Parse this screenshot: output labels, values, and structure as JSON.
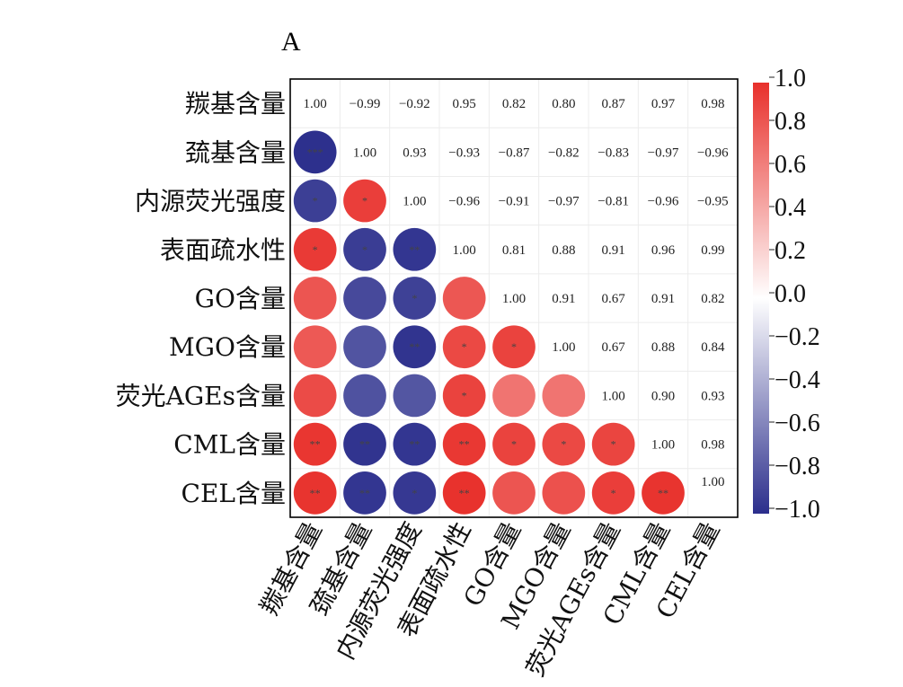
{
  "panel_label": "A",
  "chart_data": {
    "type": "heatmap",
    "title": "",
    "variables": [
      "羰基含量",
      "巯基含量",
      "内源荧光强度",
      "表面疏水性",
      "GO含量",
      "MGO含量",
      "荧光AGEs含量",
      "CML含量",
      "CEL含量"
    ],
    "matrix": [
      [
        1.0,
        -0.99,
        -0.92,
        0.95,
        0.82,
        0.8,
        0.87,
        0.97,
        0.98
      ],
      [
        -0.99,
        1.0,
        0.93,
        -0.93,
        -0.87,
        -0.82,
        -0.83,
        -0.97,
        -0.96
      ],
      [
        -0.92,
        0.93,
        1.0,
        -0.96,
        -0.91,
        -0.97,
        -0.81,
        -0.96,
        -0.95
      ],
      [
        0.95,
        -0.93,
        -0.96,
        1.0,
        0.81,
        0.88,
        0.91,
        0.96,
        0.99
      ],
      [
        0.82,
        -0.87,
        -0.91,
        0.81,
        1.0,
        0.91,
        0.67,
        0.91,
        0.82
      ],
      [
        0.8,
        -0.82,
        -0.97,
        0.88,
        0.91,
        1.0,
        0.67,
        0.88,
        0.84
      ],
      [
        0.87,
        -0.83,
        -0.81,
        0.91,
        0.67,
        0.67,
        1.0,
        0.9,
        0.93
      ],
      [
        0.97,
        -0.97,
        -0.96,
        0.96,
        0.91,
        0.88,
        0.9,
        1.0,
        0.98
      ],
      [
        0.98,
        -0.96,
        -0.95,
        0.99,
        0.82,
        0.84,
        0.93,
        0.98,
        1.0
      ]
    ],
    "upper_text": [
      [
        "1.00",
        "−0.99",
        "−0.92",
        "0.95",
        "0.82",
        "0.80",
        "0.87",
        "0.97",
        "0.98"
      ],
      [
        null,
        "1.00",
        "0.93",
        "−0.93",
        "−0.87",
        "−0.82",
        "−0.83",
        "−0.97",
        "−0.96"
      ],
      [
        null,
        null,
        "1.00",
        "−0.96",
        "−0.91",
        "−0.97",
        "−0.81",
        "−0.96",
        "−0.95"
      ],
      [
        null,
        null,
        null,
        "1.00",
        "0.81",
        "0.88",
        "0.91",
        "0.96",
        "0.99"
      ],
      [
        null,
        null,
        null,
        null,
        "1.00",
        "0.91",
        "0.67",
        "0.91",
        "0.82"
      ],
      [
        null,
        null,
        null,
        null,
        null,
        "1.00",
        "0.67",
        "0.88",
        "0.84"
      ],
      [
        null,
        null,
        null,
        null,
        null,
        null,
        "1.00",
        "0.90",
        "0.93"
      ],
      [
        null,
        null,
        null,
        null,
        null,
        null,
        null,
        "1.00",
        "0.98"
      ],
      [
        null,
        null,
        null,
        null,
        null,
        null,
        null,
        null,
        "1.00"
      ]
    ],
    "significance": [
      [
        "",
        "",
        "",
        "",
        "",
        "",
        "",
        "",
        ""
      ],
      [
        "***",
        "",
        "",
        "",
        "",
        "",
        "",
        "",
        ""
      ],
      [
        "*",
        "*",
        "",
        "",
        "",
        "",
        "",
        "",
        ""
      ],
      [
        "*",
        "*",
        "**",
        "",
        "",
        "",
        "",
        "",
        ""
      ],
      [
        "",
        "",
        "*",
        "",
        "",
        "",
        "",
        "",
        ""
      ],
      [
        "",
        "",
        "**",
        "*",
        "*",
        "",
        "",
        "",
        ""
      ],
      [
        "",
        "",
        "",
        "*",
        "",
        "",
        "",
        "",
        ""
      ],
      [
        "**",
        "**",
        "**",
        "**",
        "*",
        "*",
        "*",
        "",
        ""
      ],
      [
        "**",
        "**",
        "*",
        "**",
        "",
        "",
        "*",
        "**",
        ""
      ]
    ],
    "colorbar": {
      "range": [
        -1.0,
        1.0
      ],
      "ticks": [
        "1.0",
        "0.8",
        "0.6",
        "0.4",
        "0.2",
        "0.0",
        "−0.2",
        "−0.4",
        "−0.6",
        "−0.8",
        "−1.0"
      ],
      "colors": {
        "positive": "#e8302b",
        "neutral": "#ffffff",
        "negative": "#2b2e8c"
      }
    },
    "grid": true,
    "lower_triangle_marker": "circle",
    "upper_triangle": "numbers"
  }
}
